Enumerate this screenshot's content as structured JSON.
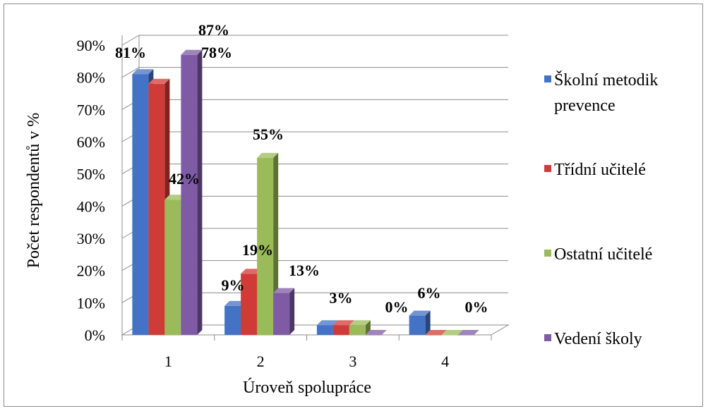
{
  "chart_data": {
    "type": "bar",
    "xlabel": "Úroveň spolupráce",
    "ylabel": "Počet respondentů v %",
    "categories": [
      "1",
      "2",
      "3",
      "4"
    ],
    "y_ticks": [
      "0%",
      "10%",
      "20%",
      "30%",
      "40%",
      "50%",
      "60%",
      "70%",
      "80%",
      "90%"
    ],
    "ylim": [
      0,
      90
    ],
    "grid": true,
    "legend_position": "right",
    "series": [
      {
        "name": "Školní metodik prevence",
        "color": "#4472C4",
        "values": [
          81,
          9,
          3,
          6
        ],
        "labels": [
          "81%",
          "9%",
          "3%",
          "6%"
        ]
      },
      {
        "name": "Třídní učitelé",
        "color": "#D13B37",
        "values": [
          78,
          19,
          3,
          0
        ],
        "labels": [
          "78%",
          "19%",
          "",
          ""
        ]
      },
      {
        "name": "Ostatní učitelé",
        "color": "#9BBB59",
        "values": [
          42,
          55,
          3,
          0
        ],
        "labels": [
          "42%",
          "55%",
          "",
          ""
        ]
      },
      {
        "name": "Vedení školy",
        "color": "#7F5BA6",
        "values": [
          87,
          13,
          0,
          0
        ],
        "labels": [
          "87%",
          "13%",
          "0%",
          "0%"
        ]
      }
    ]
  }
}
